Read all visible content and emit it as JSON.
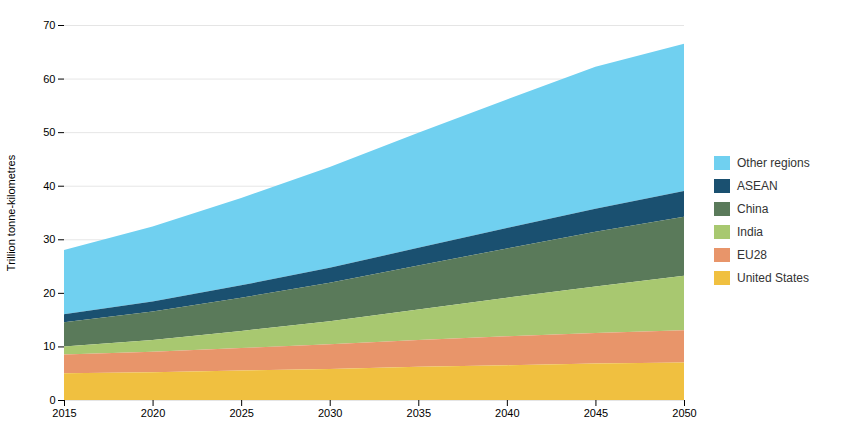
{
  "chart_data": {
    "type": "area",
    "stacked": true,
    "ylabel": "Trillion tonne-kilometres",
    "x": [
      2015,
      2020,
      2025,
      2030,
      2035,
      2040,
      2045,
      2050
    ],
    "xlim": [
      2015,
      2050
    ],
    "xticks": [
      2015,
      2020,
      2025,
      2030,
      2035,
      2040,
      2045,
      2050
    ],
    "ylim": [
      0,
      70
    ],
    "yticks": [
      0,
      10,
      20,
      30,
      40,
      50,
      60,
      70
    ],
    "grid": true,
    "legend": "right",
    "series": [
      {
        "name": "Other regions",
        "color": "#70D0F0",
        "values": [
          12.0,
          14.0,
          16.3,
          18.8,
          21.5,
          24.0,
          26.5,
          27.5
        ]
      },
      {
        "name": "ASEAN",
        "color": "#1A5070",
        "values": [
          1.5,
          1.9,
          2.3,
          2.8,
          3.3,
          3.8,
          4.3,
          4.8
        ]
      },
      {
        "name": "China",
        "color": "#5A7A5A",
        "values": [
          4.5,
          5.3,
          6.2,
          7.2,
          8.2,
          9.2,
          10.2,
          11.0
        ]
      },
      {
        "name": "India",
        "color": "#A8C870",
        "values": [
          1.5,
          2.2,
          3.2,
          4.3,
          5.7,
          7.2,
          8.7,
          10.2
        ]
      },
      {
        "name": "EU28",
        "color": "#E8956A",
        "values": [
          3.5,
          3.8,
          4.2,
          4.6,
          5.0,
          5.4,
          5.7,
          6.0
        ]
      },
      {
        "name": "United States",
        "color": "#F0C040",
        "values": [
          5.0,
          5.2,
          5.5,
          5.8,
          6.2,
          6.5,
          6.8,
          7.0
        ]
      }
    ]
  }
}
